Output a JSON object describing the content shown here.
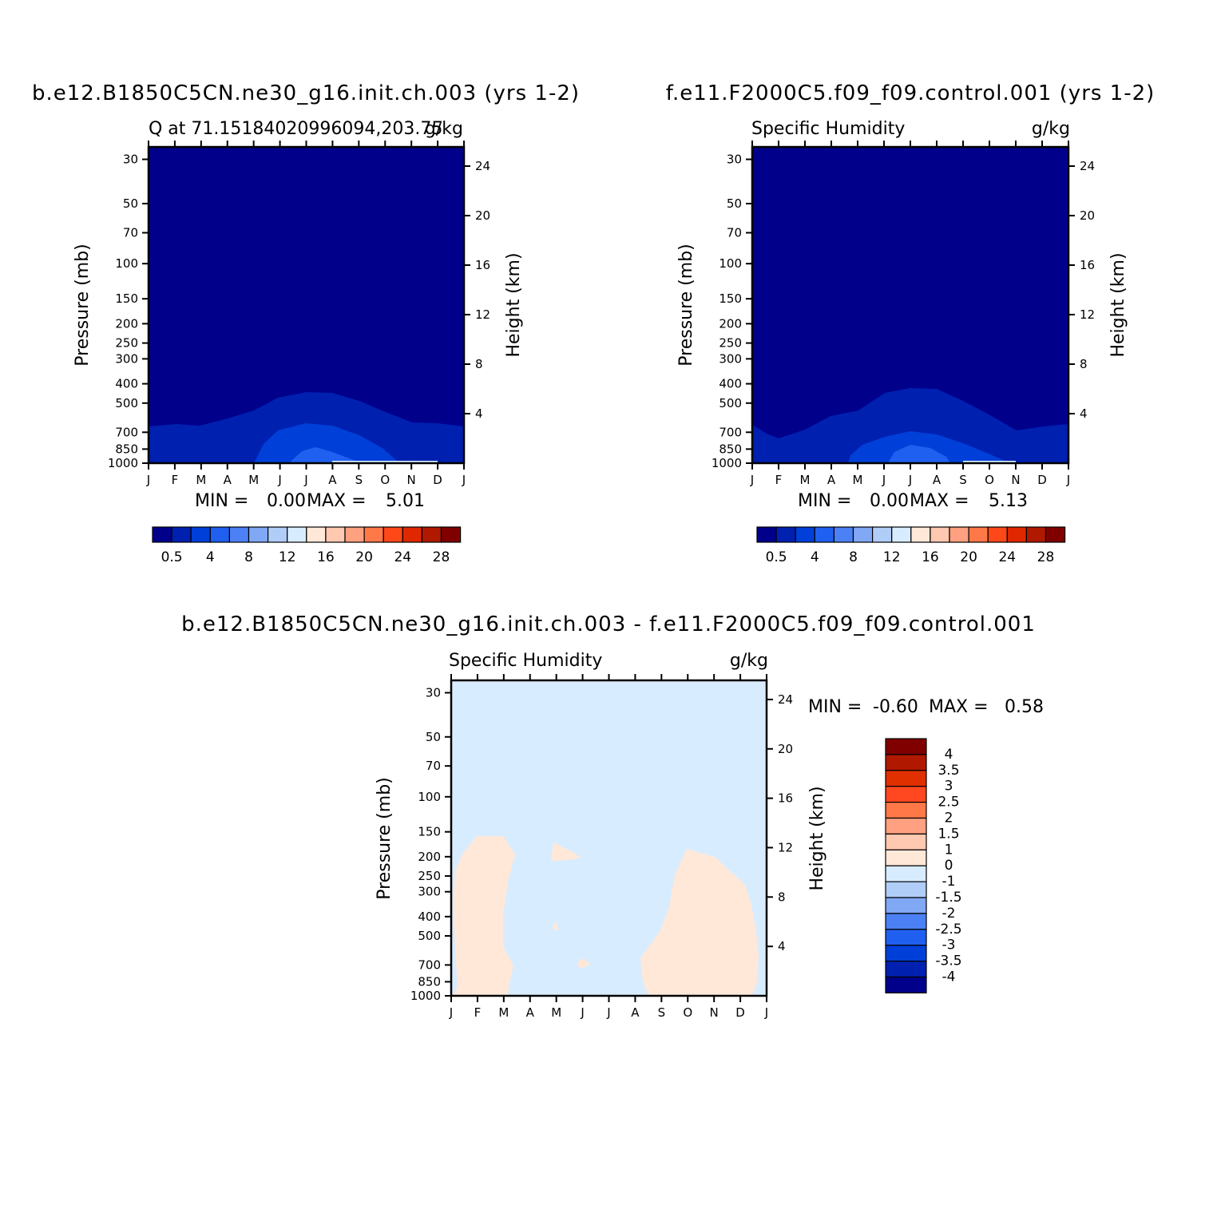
{
  "chart_data": [
    {
      "type": "contour",
      "case_title": "b.e12.B1850C5CN.ne30_g16.init.ch.003 (yrs 1-2)",
      "left_title": "Q at 71.15184020996094,203.75",
      "right_title": "g/kg",
      "ylabel": "Pressure (mb)",
      "ylabel_right": "Height (km)",
      "pressure_ticks": [
        30,
        50,
        70,
        100,
        150,
        200,
        250,
        300,
        400,
        500,
        700,
        850,
        1000
      ],
      "height_ticks": [
        4,
        8,
        12,
        16,
        20,
        24
      ],
      "months": [
        "J",
        "F",
        "M",
        "A",
        "M",
        "J",
        "J",
        "A",
        "S",
        "O",
        "N",
        "D",
        "J"
      ],
      "stats": {
        "min_label": "MIN =",
        "min": "0.00",
        "max_label": "MAX =",
        "max": "5.01"
      },
      "colorbar": {
        "orientation": "horizontal",
        "labels": [
          "0.5",
          "4",
          "8",
          "12",
          "16",
          "20",
          "24",
          "28"
        ]
      },
      "contour_levels": [
        0.5,
        2,
        4,
        6
      ],
      "background_level": "<0.5"
    },
    {
      "type": "contour",
      "case_title": "f.e11.F2000C5.f09_f09.control.001 (yrs 1-2)",
      "left_title": "Specific Humidity",
      "right_title": "g/kg",
      "ylabel": "Pressure (mb)",
      "ylabel_right": "Height (km)",
      "pressure_ticks": [
        30,
        50,
        70,
        100,
        150,
        200,
        250,
        300,
        400,
        500,
        700,
        850,
        1000
      ],
      "height_ticks": [
        4,
        8,
        12,
        16,
        20,
        24
      ],
      "months": [
        "J",
        "F",
        "M",
        "A",
        "M",
        "J",
        "J",
        "A",
        "S",
        "O",
        "N",
        "D",
        "J"
      ],
      "stats": {
        "min_label": "MIN =",
        "min": "0.00",
        "max_label": "MAX =",
        "max": "5.13"
      },
      "colorbar": {
        "orientation": "horizontal",
        "labels": [
          "0.5",
          "4",
          "8",
          "12",
          "16",
          "20",
          "24",
          "28"
        ]
      },
      "contour_levels": [
        0.5,
        2,
        4,
        6
      ],
      "background_level": "<0.5"
    },
    {
      "type": "contour",
      "case_title": "b.e12.B1850C5CN.ne30_g16.init.ch.003 - f.e11.F2000C5.f09_f09.control.001",
      "left_title": "Specific Humidity",
      "right_title": "g/kg",
      "ylabel": "Pressure (mb)",
      "ylabel_right": "Height (km)",
      "pressure_ticks": [
        30,
        50,
        70,
        100,
        150,
        200,
        250,
        300,
        400,
        500,
        700,
        850,
        1000
      ],
      "height_ticks": [
        4,
        8,
        12,
        16,
        20,
        24
      ],
      "months": [
        "J",
        "F",
        "M",
        "A",
        "M",
        "J",
        "J",
        "A",
        "S",
        "O",
        "N",
        "D",
        "J"
      ],
      "stats": {
        "min_label": "MIN =",
        "min": "-0.60",
        "max_label": "MAX =",
        "max": "0.58"
      },
      "colorbar": {
        "orientation": "vertical",
        "labels": [
          "4",
          "3.5",
          "3",
          "2.5",
          "2",
          "1.5",
          "1",
          "0",
          "-1",
          "-1.5",
          "-2",
          "-2.5",
          "-3",
          "-3.5",
          "-4"
        ]
      },
      "contour_levels": [
        0,
        1
      ],
      "background_level": "-1 to 0"
    }
  ],
  "colors": {
    "hum_scale": [
      "#00008b",
      "#0020b0",
      "#0040d8",
      "#2060f0",
      "#4c80f5",
      "#80a8f5",
      "#b0cdf8",
      "#d8ecff",
      "#ffe8d8",
      "#ffc8b0",
      "#ffa080",
      "#ff7848",
      "#ff4818",
      "#e02800",
      "#b01800",
      "#800000"
    ],
    "diff_scale": [
      "#800000",
      "#b01800",
      "#e03000",
      "#ff4820",
      "#ff7848",
      "#ffa080",
      "#ffc8b0",
      "#ffe8d8",
      "#d8ecff",
      "#b0cdf8",
      "#80a8f5",
      "#4c80f5",
      "#2060f0",
      "#0040d8",
      "#0020b0",
      "#00008b"
    ]
  }
}
